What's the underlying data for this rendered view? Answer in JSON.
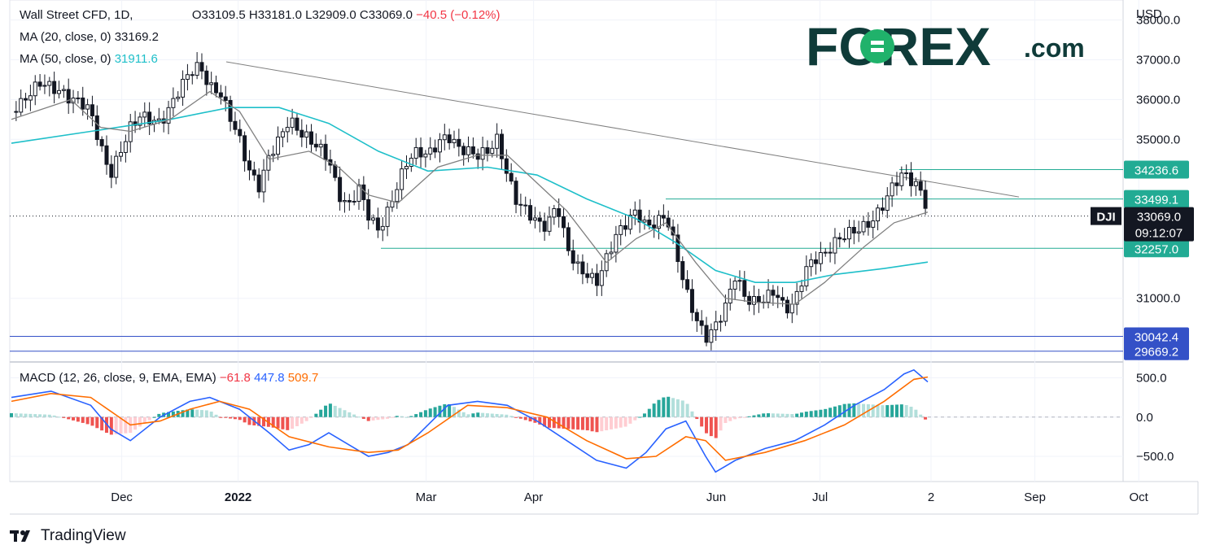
{
  "chart_data": [
    {
      "type": "candlestick",
      "symbol_line": {
        "name": "Wall Street CFD, 1D,",
        "open": "O33109.5",
        "high": "H33181.0",
        "low": "L32909.0",
        "close": "C33069.0",
        "change": "−40.5 (−0.12%)"
      },
      "indicators": [
        {
          "label": "MA (20, close, 0)",
          "value": "33169.2",
          "color": "#808080"
        },
        {
          "label": "MA (50, close, 0)",
          "value": "31911.6",
          "color": "#1ebfc9"
        }
      ],
      "currency": "USD",
      "y_ticks": [
        "38000.0",
        "37000.0",
        "36000.0",
        "35000.0",
        "31000.0"
      ],
      "x_ticks": [
        "Dec",
        "2022",
        "Mar",
        "Apr",
        "Jun",
        "Jul",
        "2",
        "Sep",
        "Oct"
      ],
      "ylim": [
        29500,
        38300
      ],
      "horizontal_levels": [
        {
          "value": "34236.6",
          "color": "#22ab94"
        },
        {
          "value": "33499.1",
          "color": "#22ab94"
        },
        {
          "value": "32257.0",
          "color": "#22ab94"
        },
        {
          "value": "30042.4",
          "color": "#3451c7"
        },
        {
          "value": "29669.2",
          "color": "#3451c7"
        }
      ],
      "price_label": {
        "symbol": "DJI",
        "price": "33069.0",
        "countdown": "09:12:07"
      },
      "trendline": {
        "from": {
          "date": "2022-01-04",
          "value": 36950
        },
        "to": {
          "date": "2022-09-23",
          "value": 33550
        }
      },
      "candles_close_path": [
        [
          0,
          35700
        ],
        [
          5,
          35900
        ],
        [
          10,
          36200
        ],
        [
          15,
          36450
        ],
        [
          20,
          36300
        ],
        [
          25,
          36200
        ],
        [
          30,
          36000
        ],
        [
          35,
          35950
        ],
        [
          40,
          35700
        ],
        [
          45,
          34800
        ],
        [
          50,
          34100
        ],
        [
          55,
          34700
        ],
        [
          60,
          35300
        ],
        [
          65,
          35600
        ],
        [
          70,
          35500
        ],
        [
          75,
          35400
        ],
        [
          80,
          35800
        ],
        [
          85,
          36300
        ],
        [
          90,
          36700
        ],
        [
          95,
          36850
        ],
        [
          100,
          36300
        ],
        [
          105,
          36200
        ],
        [
          110,
          35600
        ],
        [
          115,
          35000
        ],
        [
          120,
          34200
        ],
        [
          125,
          33800
        ],
        [
          130,
          34600
        ],
        [
          135,
          35000
        ],
        [
          140,
          35500
        ],
        [
          145,
          35200
        ],
        [
          150,
          35000
        ],
        [
          155,
          34800
        ],
        [
          160,
          34500
        ],
        [
          165,
          33600
        ],
        [
          170,
          33300
        ],
        [
          175,
          33800
        ],
        [
          180,
          33100
        ],
        [
          185,
          32700
        ],
        [
          190,
          33200
        ],
        [
          195,
          33900
        ],
        [
          200,
          34500
        ],
        [
          205,
          34700
        ],
        [
          210,
          34600
        ],
        [
          215,
          34900
        ],
        [
          220,
          35100
        ],
        [
          225,
          34800
        ],
        [
          230,
          34700
        ],
        [
          235,
          34600
        ],
        [
          240,
          34700
        ],
        [
          245,
          35000
        ],
        [
          250,
          34100
        ],
        [
          255,
          33400
        ],
        [
          260,
          33200
        ],
        [
          265,
          32900
        ],
        [
          270,
          32800
        ],
        [
          275,
          33400
        ],
        [
          280,
          32300
        ],
        [
          285,
          31800
        ],
        [
          290,
          31600
        ],
        [
          295,
          31400
        ],
        [
          300,
          32000
        ],
        [
          305,
          32600
        ],
        [
          310,
          32900
        ],
        [
          315,
          33200
        ],
        [
          320,
          32800
        ],
        [
          325,
          32900
        ],
        [
          330,
          33100
        ],
        [
          335,
          32200
        ],
        [
          340,
          31200
        ],
        [
          345,
          30500
        ],
        [
          350,
          30000
        ],
        [
          355,
          30300
        ],
        [
          360,
          30800
        ],
        [
          365,
          31600
        ],
        [
          370,
          31000
        ],
        [
          375,
          30900
        ],
        [
          380,
          31000
        ],
        [
          385,
          31200
        ],
        [
          390,
          30700
        ],
        [
          395,
          30900
        ],
        [
          400,
          31700
        ],
        [
          405,
          32000
        ],
        [
          410,
          32100
        ],
        [
          415,
          32400
        ],
        [
          420,
          32600
        ],
        [
          425,
          32700
        ],
        [
          430,
          32800
        ],
        [
          435,
          33000
        ],
        [
          440,
          33400
        ],
        [
          445,
          33900
        ],
        [
          450,
          34150
        ],
        [
          455,
          33900
        ],
        [
          460,
          33600
        ],
        [
          462,
          33069
        ]
      ],
      "ma20_path": [
        [
          0,
          35500
        ],
        [
          30,
          36000
        ],
        [
          45,
          35300
        ],
        [
          60,
          35200
        ],
        [
          80,
          35500
        ],
        [
          100,
          36200
        ],
        [
          115,
          35700
        ],
        [
          130,
          34500
        ],
        [
          150,
          34700
        ],
        [
          165,
          34300
        ],
        [
          180,
          33600
        ],
        [
          195,
          33400
        ],
        [
          215,
          34300
        ],
        [
          235,
          34600
        ],
        [
          250,
          34600
        ],
        [
          265,
          33900
        ],
        [
          280,
          33200
        ],
        [
          300,
          31900
        ],
        [
          315,
          32500
        ],
        [
          330,
          32900
        ],
        [
          345,
          31900
        ],
        [
          360,
          31000
        ],
        [
          375,
          30900
        ],
        [
          395,
          30850
        ],
        [
          410,
          31400
        ],
        [
          430,
          32300
        ],
        [
          445,
          32900
        ],
        [
          462,
          33169.2
        ]
      ],
      "ma50_path": [
        [
          0,
          34900
        ],
        [
          40,
          35200
        ],
        [
          80,
          35500
        ],
        [
          110,
          35800
        ],
        [
          135,
          35800
        ],
        [
          160,
          35400
        ],
        [
          185,
          34700
        ],
        [
          210,
          34200
        ],
        [
          240,
          34300
        ],
        [
          265,
          34100
        ],
        [
          290,
          33500
        ],
        [
          315,
          33000
        ],
        [
          335,
          32400
        ],
        [
          355,
          31700
        ],
        [
          375,
          31400
        ],
        [
          395,
          31400
        ],
        [
          415,
          31600
        ],
        [
          440,
          31750
        ],
        [
          462,
          31911.6
        ]
      ]
    },
    {
      "type": "macd",
      "label": "MACD (12, 26, close, 9, EMA, EMA)",
      "hist_value": "−61.8",
      "macd_value": "447.8",
      "signal_value": "509.7",
      "colors": {
        "hist_pos": "#26a69a",
        "hist_pos_light": "#b2dfdb",
        "hist_neg": "#ef5350",
        "hist_neg_light": "#ffcdd2",
        "macd": "#2962ff",
        "signal": "#ff6d00"
      },
      "y_ticks": [
        "500.0",
        "0.0",
        "−500.0"
      ],
      "ylim": [
        -800,
        650
      ],
      "macd_path": [
        [
          0,
          250
        ],
        [
          20,
          330
        ],
        [
          40,
          150
        ],
        [
          50,
          -150
        ],
        [
          60,
          -300
        ],
        [
          75,
          0
        ],
        [
          90,
          200
        ],
        [
          100,
          250
        ],
        [
          115,
          100
        ],
        [
          130,
          -200
        ],
        [
          140,
          -420
        ],
        [
          150,
          -350
        ],
        [
          160,
          -200
        ],
        [
          170,
          -350
        ],
        [
          180,
          -500
        ],
        [
          190,
          -450
        ],
        [
          200,
          -350
        ],
        [
          210,
          -100
        ],
        [
          220,
          150
        ],
        [
          235,
          200
        ],
        [
          250,
          150
        ],
        [
          265,
          -50
        ],
        [
          280,
          -300
        ],
        [
          295,
          -550
        ],
        [
          310,
          -650
        ],
        [
          320,
          -450
        ],
        [
          330,
          -150
        ],
        [
          340,
          -50
        ],
        [
          350,
          -500
        ],
        [
          355,
          -700
        ],
        [
          365,
          -550
        ],
        [
          380,
          -400
        ],
        [
          395,
          -300
        ],
        [
          410,
          -100
        ],
        [
          425,
          150
        ],
        [
          440,
          350
        ],
        [
          450,
          550
        ],
        [
          455,
          600
        ],
        [
          462,
          447.8
        ]
      ],
      "signal_path": [
        [
          0,
          200
        ],
        [
          20,
          300
        ],
        [
          40,
          250
        ],
        [
          60,
          -100
        ],
        [
          75,
          -50
        ],
        [
          90,
          100
        ],
        [
          105,
          200
        ],
        [
          120,
          100
        ],
        [
          140,
          -250
        ],
        [
          160,
          -380
        ],
        [
          180,
          -450
        ],
        [
          195,
          -420
        ],
        [
          210,
          -200
        ],
        [
          230,
          150
        ],
        [
          250,
          120
        ],
        [
          270,
          0
        ],
        [
          290,
          -300
        ],
        [
          310,
          -530
        ],
        [
          325,
          -500
        ],
        [
          340,
          -250
        ],
        [
          350,
          -300
        ],
        [
          360,
          -550
        ],
        [
          380,
          -450
        ],
        [
          400,
          -300
        ],
        [
          420,
          -100
        ],
        [
          440,
          200
        ],
        [
          455,
          480
        ],
        [
          462,
          509.7
        ]
      ]
    }
  ],
  "branding": {
    "logo": "FOREX",
    "logo_suffix": ".com",
    "footer": "TradingView"
  }
}
